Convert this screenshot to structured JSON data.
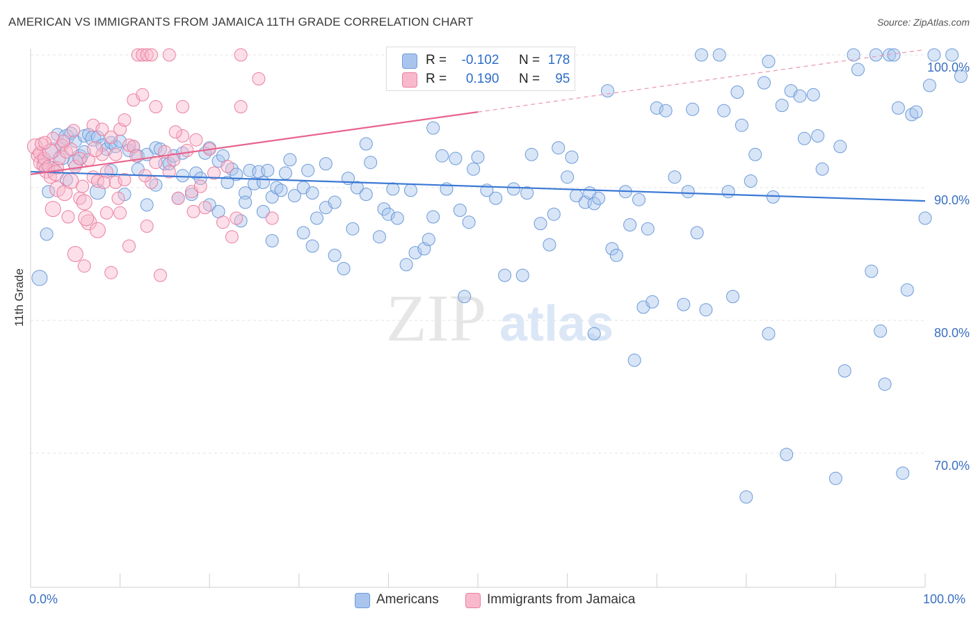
{
  "title": "AMERICAN VS IMMIGRANTS FROM JAMAICA 11TH GRADE CORRELATION CHART",
  "source": "Source: ZipAtlas.com",
  "watermark": {
    "zip": "ZIP",
    "atlas": "atlas"
  },
  "legend": {
    "r_label": "R =",
    "n_label": "N =",
    "rows": [
      {
        "r": "-0.102",
        "n": "178",
        "color": "#a9c5ee",
        "border": "#6c9ad8"
      },
      {
        "r": "0.190",
        "n": "95",
        "color": "#f8b9cc",
        "border": "#ea7fa0"
      }
    ]
  },
  "bottom_legend": [
    "Americans",
    "Immigrants from Jamaica"
  ],
  "chart_data": {
    "type": "scatter",
    "title": "AMERICAN VS IMMIGRANTS FROM JAMAICA 11TH GRADE CORRELATION CHART",
    "xlabel": "",
    "ylabel": "11th Grade",
    "xlim": [
      0,
      100
    ],
    "ylim": [
      60,
      101.5
    ],
    "x_tick_labels": [
      "0.0%",
      "100.0%"
    ],
    "y_ticks": [
      70,
      80,
      90,
      100
    ],
    "y_tick_labels": [
      "70.0%",
      "80.0%",
      "90.0%",
      "100.0%"
    ],
    "grid": true,
    "legend_position": "top-center",
    "series": [
      {
        "name": "Americans",
        "color": "#a9c5ee",
        "stroke": "#6c9ad8",
        "trend": {
          "x": [
            0,
            100
          ],
          "y": [
            91.2,
            89.0
          ],
          "color": "#3a78d4"
        },
        "points": [
          [
            1,
            83.2
          ],
          [
            1.8,
            86.5
          ],
          [
            2,
            89.7
          ],
          [
            2.5,
            92.8
          ],
          [
            3,
            94
          ],
          [
            3.5,
            93.2
          ],
          [
            4,
            93.8
          ],
          [
            4.5,
            94.1
          ],
          [
            5,
            93.5
          ],
          [
            5.5,
            92.3
          ],
          [
            6,
            93.9
          ],
          [
            6.5,
            94
          ],
          [
            7,
            93.7
          ],
          [
            7.5,
            93.8
          ],
          [
            8,
            93.2
          ],
          [
            8.5,
            92.9
          ],
          [
            9,
            93.4
          ],
          [
            9.5,
            93.1
          ],
          [
            10,
            93.5
          ],
          [
            11,
            92.8
          ],
          [
            11.5,
            93.1
          ],
          [
            12,
            92.4
          ],
          [
            13,
            92.5
          ],
          [
            14,
            93
          ],
          [
            14.5,
            92.9
          ],
          [
            15,
            91.8
          ],
          [
            15.5,
            91.8
          ],
          [
            16,
            92.4
          ],
          [
            17,
            92.6
          ],
          [
            18.5,
            91.1
          ],
          [
            19,
            90.7
          ],
          [
            19.5,
            92.6
          ],
          [
            20,
            93
          ],
          [
            21,
            92
          ],
          [
            21.5,
            92.4
          ],
          [
            22,
            90.4
          ],
          [
            22.5,
            91.4
          ],
          [
            23,
            91
          ],
          [
            24,
            89.6
          ],
          [
            24.5,
            91.3
          ],
          [
            25,
            90.3
          ],
          [
            25.5,
            91.2
          ],
          [
            26,
            90.4
          ],
          [
            26.5,
            91.3
          ],
          [
            27,
            89.3
          ],
          [
            27.5,
            90
          ],
          [
            28,
            89.8
          ],
          [
            28.5,
            91.1
          ],
          [
            29.5,
            89.4
          ],
          [
            30.5,
            90
          ],
          [
            31,
            91.3
          ],
          [
            31.5,
            89.6
          ],
          [
            32,
            87.7
          ],
          [
            33,
            88.5
          ],
          [
            34,
            88.9
          ],
          [
            35.5,
            90.7
          ],
          [
            36.5,
            90
          ],
          [
            37.5,
            89.5
          ],
          [
            38,
            91.9
          ],
          [
            39.5,
            88.4
          ],
          [
            40,
            88
          ],
          [
            40.5,
            89.9
          ],
          [
            41,
            87.7
          ],
          [
            42.5,
            89.8
          ],
          [
            43,
            85.1
          ],
          [
            44,
            85.4
          ],
          [
            45,
            87.8
          ],
          [
            46,
            92.4
          ],
          [
            46.5,
            89.9
          ],
          [
            47.5,
            92.2
          ],
          [
            48,
            88.3
          ],
          [
            48.5,
            81.8
          ],
          [
            49,
            87.4
          ],
          [
            49.5,
            91.4
          ],
          [
            50,
            92.3
          ],
          [
            51,
            89.8
          ],
          [
            52,
            89.2
          ],
          [
            53,
            83.4
          ],
          [
            54,
            89.9
          ],
          [
            55,
            83.4
          ],
          [
            55.5,
            89.6
          ],
          [
            56,
            92.5
          ],
          [
            57,
            87.3
          ],
          [
            58,
            85.7
          ],
          [
            58.5,
            88
          ],
          [
            59,
            93
          ],
          [
            60,
            90.8
          ],
          [
            60.5,
            92.3
          ],
          [
            61,
            89.4
          ],
          [
            62,
            88.9
          ],
          [
            62.5,
            89.6
          ],
          [
            63,
            88.8
          ],
          [
            63.5,
            89.2
          ],
          [
            63,
            79
          ],
          [
            64.5,
            97.3
          ],
          [
            65,
            85.4
          ],
          [
            65.5,
            84.9
          ],
          [
            66.5,
            89.7
          ],
          [
            67,
            87.2
          ],
          [
            67.5,
            77
          ],
          [
            68,
            89.1
          ],
          [
            68.5,
            81
          ],
          [
            69,
            86.9
          ],
          [
            69.5,
            81.4
          ],
          [
            70,
            96
          ],
          [
            71,
            95.8
          ],
          [
            72,
            90.8
          ],
          [
            73,
            81.2
          ],
          [
            73.5,
            89.7
          ],
          [
            74,
            95.9
          ],
          [
            74.5,
            86.6
          ],
          [
            75,
            100
          ],
          [
            75.5,
            80.8
          ],
          [
            77,
            100
          ],
          [
            77.5,
            95.8
          ],
          [
            78,
            89.7
          ],
          [
            78.5,
            81.8
          ],
          [
            79,
            97.2
          ],
          [
            79.5,
            94.7
          ],
          [
            80,
            66.7
          ],
          [
            80.5,
            90.5
          ],
          [
            81,
            92.5
          ],
          [
            82,
            97.9
          ],
          [
            82.5,
            79
          ],
          [
            82.5,
            99.5
          ],
          [
            83,
            89.3
          ],
          [
            84,
            96.2
          ],
          [
            84.5,
            69.9
          ],
          [
            85,
            97.3
          ],
          [
            86,
            96.9
          ],
          [
            86.5,
            93.7
          ],
          [
            87.5,
            97
          ],
          [
            88,
            93.9
          ],
          [
            88.5,
            91.4
          ],
          [
            90,
            68.1
          ],
          [
            90.5,
            93.1
          ],
          [
            91,
            76.2
          ],
          [
            92,
            100
          ],
          [
            92.5,
            98.9
          ],
          [
            94,
            83.7
          ],
          [
            94.5,
            100
          ],
          [
            95,
            79.2
          ],
          [
            95.5,
            75.2
          ],
          [
            96,
            100
          ],
          [
            96.5,
            100
          ],
          [
            97,
            96
          ],
          [
            97.5,
            68.5
          ],
          [
            98,
            82.3
          ],
          [
            98.5,
            95.5
          ],
          [
            99,
            95.7
          ],
          [
            100.5,
            97.7
          ],
          [
            101,
            100
          ],
          [
            103,
            100
          ],
          [
            104,
            98.4
          ],
          [
            100,
            87.7
          ],
          [
            45,
            94.5
          ],
          [
            37.5,
            93.3
          ],
          [
            29,
            92.1
          ],
          [
            33,
            91.8
          ],
          [
            26,
            88.2
          ],
          [
            42,
            84.2
          ],
          [
            36,
            86.9
          ],
          [
            30.5,
            86.6
          ],
          [
            39,
            86.3
          ],
          [
            44.5,
            86.1
          ],
          [
            27,
            86
          ],
          [
            23.5,
            87.5
          ],
          [
            20,
            88.7
          ],
          [
            16.5,
            89.2
          ],
          [
            13,
            88.7
          ],
          [
            10.5,
            89.5
          ],
          [
            7.5,
            89.7
          ],
          [
            4,
            90.6
          ],
          [
            2.5,
            91.5
          ],
          [
            5,
            91.9
          ],
          [
            6,
            92.7
          ],
          [
            1.5,
            91.9
          ],
          [
            3.5,
            92.3
          ],
          [
            12,
            91.4
          ],
          [
            17,
            90.9
          ],
          [
            18,
            89.5
          ],
          [
            21,
            88.2
          ],
          [
            9,
            91.3
          ],
          [
            14,
            90.2
          ],
          [
            24,
            88.9
          ],
          [
            31.5,
            85.6
          ],
          [
            34,
            84.9
          ],
          [
            35,
            83.9
          ]
        ]
      },
      {
        "name": "Immigrants from Jamaica",
        "color": "#f8b9cc",
        "stroke": "#ea7fa0",
        "trend_solid": {
          "x": [
            0,
            50
          ],
          "y": [
            91.0,
            95.7
          ],
          "color": "#e8638d"
        },
        "trend_dashed": {
          "x": [
            50,
            100
          ],
          "y": [
            95.7,
            100.4
          ],
          "color": "#ec9ab4"
        },
        "points": [
          [
            0.5,
            93.1
          ],
          [
            0.8,
            92.4
          ],
          [
            1,
            92.6
          ],
          [
            1.2,
            91.9
          ],
          [
            1.4,
            91.7
          ],
          [
            1.5,
            92.2
          ],
          [
            1.8,
            91.3
          ],
          [
            2,
            91.6
          ],
          [
            2.2,
            90.8
          ],
          [
            2.5,
            88.4
          ],
          [
            2.5,
            93.7
          ],
          [
            3,
            91.5
          ],
          [
            3,
            89.9
          ],
          [
            3.2,
            92.2
          ],
          [
            3.5,
            93.2
          ],
          [
            3.8,
            89.6
          ],
          [
            4,
            92.7
          ],
          [
            4.2,
            87.8
          ],
          [
            4.5,
            90.5
          ],
          [
            4.5,
            92.9
          ],
          [
            5,
            91.6
          ],
          [
            5,
            85
          ],
          [
            5.5,
            89.2
          ],
          [
            5.5,
            92.2
          ],
          [
            6,
            88.9
          ],
          [
            6,
            84.1
          ],
          [
            6.5,
            92.1
          ],
          [
            6.5,
            87.4
          ],
          [
            7,
            90.8
          ],
          [
            7,
            94.7
          ],
          [
            7.5,
            86.8
          ],
          [
            7.5,
            90.5
          ],
          [
            8,
            94.4
          ],
          [
            8,
            92.5
          ],
          [
            8.5,
            88.1
          ],
          [
            8.5,
            91.2
          ],
          [
            9,
            83.6
          ],
          [
            9,
            93.8
          ],
          [
            9.5,
            90.4
          ],
          [
            9.5,
            92.5
          ],
          [
            10,
            88.1
          ],
          [
            10,
            94.4
          ],
          [
            10.5,
            95.1
          ],
          [
            10.5,
            90.6
          ],
          [
            11,
            85.6
          ],
          [
            11,
            93.2
          ],
          [
            11.5,
            96.6
          ],
          [
            11.5,
            93.1
          ],
          [
            12,
            100
          ],
          [
            12.5,
            97
          ],
          [
            12.5,
            100
          ],
          [
            13,
            100
          ],
          [
            13,
            87.1
          ],
          [
            13.5,
            90.4
          ],
          [
            13.5,
            100
          ],
          [
            14,
            96.1
          ],
          [
            14,
            91.9
          ],
          [
            14.5,
            83.4
          ],
          [
            15,
            92.7
          ],
          [
            15.5,
            100
          ],
          [
            15.5,
            91.2
          ],
          [
            16,
            92.1
          ],
          [
            16.5,
            89.2
          ],
          [
            17,
            93.9
          ],
          [
            17,
            96.1
          ],
          [
            17.5,
            92.8
          ],
          [
            18,
            89.7
          ],
          [
            18.5,
            93.6
          ],
          [
            19,
            90.1
          ],
          [
            19.5,
            88.5
          ],
          [
            20,
            92.9
          ],
          [
            20.5,
            91.1
          ],
          [
            21.5,
            87.4
          ],
          [
            22,
            91.6
          ],
          [
            22.5,
            86.3
          ],
          [
            23,
            87.7
          ],
          [
            23.5,
            96.1
          ],
          [
            23.5,
            100
          ],
          [
            25.5,
            98.2
          ],
          [
            27,
            87.7
          ],
          [
            1.2,
            93.3
          ],
          [
            2.8,
            91.1
          ],
          [
            3.7,
            93.5
          ],
          [
            5.8,
            90.1
          ],
          [
            7.2,
            92.9
          ],
          [
            9.8,
            89.2
          ],
          [
            11.8,
            92.4
          ],
          [
            12.8,
            90.9
          ],
          [
            16.2,
            94.2
          ],
          [
            18.2,
            88.2
          ],
          [
            6.2,
            87.7
          ],
          [
            8.2,
            90.4
          ],
          [
            4.8,
            94.3
          ],
          [
            2.2,
            92.7
          ],
          [
            1.6,
            93.4
          ]
        ]
      }
    ]
  }
}
